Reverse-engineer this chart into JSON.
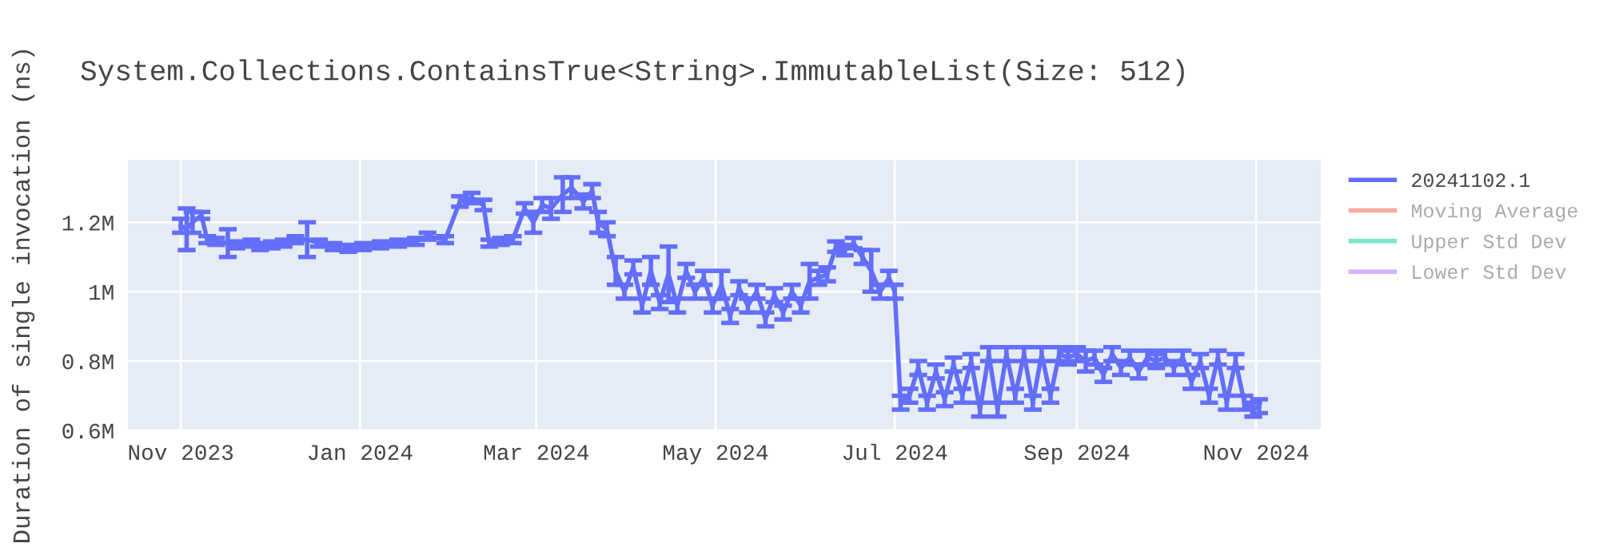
{
  "chart_data": {
    "type": "line",
    "title": "System.Collections.ContainsTrue<String>.ImmutableList(Size: 512)",
    "ylabel": "Duration of single invocation (ns)",
    "x": [
      "2023-11-01",
      "2023-11-03",
      "2023-11-05",
      "2023-11-08",
      "2023-11-10",
      "2023-11-13",
      "2023-11-17",
      "2023-11-20",
      "2023-11-25",
      "2023-11-28",
      "2023-12-02",
      "2023-12-06",
      "2023-12-10",
      "2023-12-14",
      "2023-12-18",
      "2023-12-23",
      "2023-12-28",
      "2024-01-02",
      "2024-01-08",
      "2024-01-14",
      "2024-01-20",
      "2024-01-24",
      "2024-01-30",
      "2024-02-04",
      "2024-02-08",
      "2024-02-12",
      "2024-02-14",
      "2024-02-18",
      "2024-02-22",
      "2024-02-26",
      "2024-02-29",
      "2024-03-03",
      "2024-03-06",
      "2024-03-10",
      "2024-03-13",
      "2024-03-17",
      "2024-03-20",
      "2024-03-22",
      "2024-03-25",
      "2024-03-28",
      "2024-03-31",
      "2024-04-03",
      "2024-04-06",
      "2024-04-09",
      "2024-04-12",
      "2024-04-15",
      "2024-04-18",
      "2024-04-21",
      "2024-04-24",
      "2024-04-27",
      "2024-04-30",
      "2024-05-03",
      "2024-05-06",
      "2024-05-09",
      "2024-05-12",
      "2024-05-15",
      "2024-05-18",
      "2024-05-21",
      "2024-05-24",
      "2024-05-27",
      "2024-05-30",
      "2024-06-02",
      "2024-06-05",
      "2024-06-08",
      "2024-06-11",
      "2024-06-14",
      "2024-06-17",
      "2024-06-20",
      "2024-06-23",
      "2024-06-26",
      "2024-06-29",
      "2024-07-01",
      "2024-07-03",
      "2024-07-06",
      "2024-07-09",
      "2024-07-12",
      "2024-07-15",
      "2024-07-18",
      "2024-07-21",
      "2024-07-24",
      "2024-07-27",
      "2024-07-30",
      "2024-08-02",
      "2024-08-05",
      "2024-08-08",
      "2024-08-11",
      "2024-08-14",
      "2024-08-17",
      "2024-08-20",
      "2024-08-23",
      "2024-08-26",
      "2024-08-29",
      "2024-09-01",
      "2024-09-04",
      "2024-09-07",
      "2024-09-10",
      "2024-09-13",
      "2024-09-16",
      "2024-09-19",
      "2024-09-22",
      "2024-09-25",
      "2024-09-28",
      "2024-10-01",
      "2024-10-04",
      "2024-10-07",
      "2024-10-10",
      "2024-10-13",
      "2024-10-16",
      "2024-10-19",
      "2024-10-22",
      "2024-10-25",
      "2024-10-28",
      "2024-10-31",
      "2024-11-02"
    ],
    "series": [
      {
        "name": "20241102.1",
        "color": "#636efa",
        "values": [
          1190000,
          1180000,
          1200000,
          1220000,
          1150000,
          1145000,
          1140000,
          1135000,
          1140000,
          1130000,
          1135000,
          1140000,
          1150000,
          1150000,
          1140000,
          1130000,
          1125000,
          1130000,
          1135000,
          1140000,
          1145000,
          1160000,
          1150000,
          1260000,
          1270000,
          1250000,
          1140000,
          1145000,
          1150000,
          1240000,
          1200000,
          1250000,
          1240000,
          1280000,
          1300000,
          1260000,
          1290000,
          1200000,
          1180000,
          1060000,
          1000000,
          1070000,
          960000,
          1060000,
          970000,
          1050000,
          960000,
          1060000,
          1000000,
          1040000,
          960000,
          1020000,
          930000,
          1010000,
          960000,
          1000000,
          920000,
          990000,
          940000,
          1000000,
          960000,
          1030000,
          1040000,
          1050000,
          1130000,
          1120000,
          1140000,
          1100000,
          1060000,
          1000000,
          1040000,
          1000000,
          680000,
          700000,
          780000,
          680000,
          770000,
          690000,
          790000,
          700000,
          800000,
          660000,
          820000,
          660000,
          820000,
          700000,
          820000,
          680000,
          820000,
          700000,
          820000,
          810000,
          820000,
          800000,
          810000,
          760000,
          820000,
          780000,
          810000,
          770000,
          810000,
          800000,
          810000,
          780000,
          810000,
          740000,
          800000,
          700000,
          810000,
          680000,
          800000,
          680000,
          660000,
          670000
        ],
        "errors": [
          20000,
          60000,
          30000,
          10000,
          10000,
          10000,
          40000,
          10000,
          10000,
          10000,
          10000,
          10000,
          10000,
          50000,
          10000,
          10000,
          10000,
          10000,
          10000,
          10000,
          10000,
          10000,
          10000,
          15000,
          15000,
          15000,
          10000,
          10000,
          10000,
          15000,
          30000,
          20000,
          30000,
          50000,
          30000,
          20000,
          20000,
          30000,
          20000,
          40000,
          20000,
          20000,
          20000,
          40000,
          20000,
          80000,
          20000,
          20000,
          20000,
          20000,
          20000,
          40000,
          20000,
          20000,
          20000,
          20000,
          20000,
          20000,
          20000,
          20000,
          20000,
          50000,
          20000,
          20000,
          15000,
          15000,
          15000,
          20000,
          60000,
          20000,
          20000,
          20000,
          20000,
          20000,
          20000,
          20000,
          20000,
          20000,
          20000,
          20000,
          20000,
          20000,
          20000,
          20000,
          20000,
          20000,
          20000,
          20000,
          20000,
          20000,
          20000,
          20000,
          20000,
          30000,
          20000,
          20000,
          20000,
          20000,
          20000,
          20000,
          20000,
          20000,
          20000,
          20000,
          20000,
          20000,
          20000,
          20000,
          20000,
          20000,
          20000,
          20000,
          20000,
          20000
        ]
      },
      {
        "name": "Moving Average",
        "color": "#ef553b",
        "values": [
          null,
          null,
          null,
          null,
          null,
          null,
          null,
          null,
          null,
          null,
          null,
          null,
          null,
          null,
          null,
          null,
          null,
          null,
          null,
          null,
          null,
          null,
          null,
          null,
          null,
          null,
          null,
          null,
          null,
          null,
          null,
          null,
          null,
          null,
          null,
          null,
          null,
          null,
          null,
          null,
          null,
          null,
          null,
          null,
          null,
          null,
          null,
          null,
          null,
          null,
          null,
          null,
          null,
          null,
          null,
          null,
          null,
          null,
          null,
          null,
          null,
          null,
          null,
          null,
          null,
          null,
          null,
          null,
          null,
          null,
          null,
          null,
          null,
          null,
          null,
          null,
          null,
          null,
          null,
          null,
          null,
          null,
          null,
          null,
          null,
          null,
          null,
          null,
          null,
          null,
          null,
          null,
          null,
          null,
          null,
          null,
          null,
          null,
          null,
          null,
          null,
          null,
          null,
          null,
          null,
          null,
          null,
          null,
          null,
          null,
          null,
          null,
          null,
          null
        ]
      },
      {
        "name": "Upper Std Dev",
        "color": "#00cc96",
        "values": [
          null,
          null,
          null,
          null,
          null,
          null,
          null,
          null,
          null,
          null,
          null,
          null,
          null,
          null,
          null,
          null,
          null,
          null,
          null,
          null,
          null,
          null,
          null,
          null,
          null,
          null,
          null,
          null,
          null,
          null,
          null,
          null,
          null,
          null,
          null,
          null,
          null,
          null,
          null,
          null,
          null,
          null,
          null,
          null,
          null,
          null,
          null,
          null,
          null,
          null,
          null,
          null,
          null,
          null,
          null,
          null,
          null,
          null,
          null,
          null,
          null,
          null,
          null,
          null,
          null,
          null,
          null,
          null,
          null,
          null,
          null,
          null,
          null,
          null,
          null,
          null,
          null,
          null,
          null,
          null,
          null,
          null,
          null,
          null,
          null,
          null,
          null,
          null,
          null,
          null,
          null,
          null,
          null,
          null,
          null,
          null,
          null,
          null,
          null,
          null,
          null,
          null,
          null,
          null,
          null,
          null,
          null,
          null,
          null,
          null,
          null,
          null,
          null,
          null
        ]
      },
      {
        "name": "Lower Std Dev",
        "color": "#ab63fa",
        "values": [
          null,
          null,
          null,
          null,
          null,
          null,
          null,
          null,
          null,
          null,
          null,
          null,
          null,
          null,
          null,
          null,
          null,
          null,
          null,
          null,
          null,
          null,
          null,
          null,
          null,
          null,
          null,
          null,
          null,
          null,
          null,
          null,
          null,
          null,
          null,
          null,
          null,
          null,
          null,
          null,
          null,
          null,
          null,
          null,
          null,
          null,
          null,
          null,
          null,
          null,
          null,
          null,
          null,
          null,
          null,
          null,
          null,
          null,
          null,
          null,
          null,
          null,
          null,
          null,
          null,
          null,
          null,
          null,
          null,
          null,
          null,
          null,
          null,
          null,
          null,
          null,
          null,
          null,
          null,
          null,
          null,
          null,
          null,
          null,
          null,
          null,
          null,
          null,
          null,
          null,
          null,
          null,
          null,
          null,
          null,
          null,
          null,
          null,
          null,
          null,
          null,
          null,
          null,
          null,
          null,
          null,
          null,
          null,
          null,
          null,
          null,
          null,
          null,
          null
        ]
      }
    ],
    "xlim": [
      "2023-10-14",
      "2024-11-23"
    ],
    "xticks": [
      {
        "value": "2023-11-01",
        "label": "Nov 2023"
      },
      {
        "value": "2024-01-01",
        "label": "Jan 2024"
      },
      {
        "value": "2024-03-01",
        "label": "Mar 2024"
      },
      {
        "value": "2024-05-01",
        "label": "May 2024"
      },
      {
        "value": "2024-07-01",
        "label": "Jul 2024"
      },
      {
        "value": "2024-09-01",
        "label": "Sep 2024"
      },
      {
        "value": "2024-11-01",
        "label": "Nov 2024"
      }
    ],
    "ylim": [
      600000,
      1380000
    ],
    "yticks": [
      {
        "value": 600000,
        "label": "0.6M"
      },
      {
        "value": 800000,
        "label": "0.8M"
      },
      {
        "value": 1000000,
        "label": "1M"
      },
      {
        "value": 1200000,
        "label": "1.2M"
      }
    ],
    "grid": true,
    "legend": "right",
    "marker": "none",
    "line_style": "solid"
  }
}
